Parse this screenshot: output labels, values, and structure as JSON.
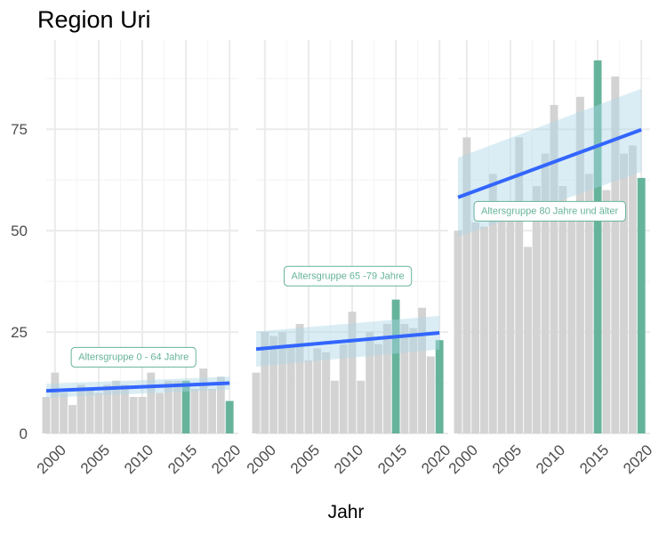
{
  "title": "Region Uri",
  "chart_data": {
    "type": "bar",
    "title": "Region Uri",
    "xlabel": "Jahr",
    "ylabel": "",
    "x_ticks": [
      2000,
      2005,
      2010,
      2015,
      2020
    ],
    "y_ticks": [
      0,
      25,
      50,
      75
    ],
    "ylim": [
      0,
      97
    ],
    "xlim": [
      1999,
      2021
    ],
    "grid": true,
    "colors": {
      "bar": "#d3d3d3",
      "highlight": "#66b39b",
      "trend": "#3366ff",
      "ribbon": "#add8e6",
      "annotation": "#66b39b"
    },
    "panels": [
      {
        "annotation": "Altersgruppe 0 - 64 Jahre",
        "annotation_pos": {
          "x": 2009,
          "y": 19
        },
        "years": [
          1999,
          2000,
          2001,
          2002,
          2003,
          2004,
          2005,
          2006,
          2007,
          2008,
          2009,
          2010,
          2011,
          2012,
          2013,
          2014,
          2015,
          2016,
          2017,
          2018,
          2019,
          2020
        ],
        "values": [
          9,
          15,
          10,
          7,
          12,
          11,
          10,
          12,
          13,
          12,
          9,
          9,
          15,
          10,
          13,
          13,
          13,
          11,
          16,
          11,
          14,
          8
        ],
        "highlight_years": [
          2015,
          2020
        ],
        "trend": {
          "x": [
            1999,
            2020
          ],
          "y": [
            10.5,
            12.4
          ],
          "lower": [
            8.8,
            10.8
          ],
          "upper": [
            12.2,
            14.0
          ]
        }
      },
      {
        "annotation": "Altersgruppe 65 -79 Jahre",
        "annotation_pos": {
          "x": 2009.5,
          "y": 39
        },
        "years": [
          1999,
          2000,
          2001,
          2002,
          2003,
          2004,
          2005,
          2006,
          2007,
          2008,
          2009,
          2010,
          2011,
          2012,
          2013,
          2014,
          2015,
          2016,
          2017,
          2018,
          2019,
          2020
        ],
        "values": [
          15,
          25,
          24,
          25,
          22,
          27,
          18,
          21,
          20,
          13,
          22,
          30,
          13,
          25,
          22,
          27,
          33,
          27,
          26,
          31,
          19,
          23
        ],
        "highlight_years": [
          2015,
          2020
        ],
        "trend": {
          "x": [
            1999,
            2020
          ],
          "y": [
            20.8,
            24.8
          ],
          "lower": [
            16.5,
            20.7
          ],
          "upper": [
            25.1,
            29.0
          ]
        }
      },
      {
        "annotation": "Altersgruppe 80 Jahre und älter",
        "annotation_pos": {
          "x": 2009.5,
          "y": 55
        },
        "years": [
          1999,
          2000,
          2001,
          2002,
          2003,
          2004,
          2005,
          2006,
          2007,
          2008,
          2009,
          2010,
          2011,
          2012,
          2013,
          2014,
          2015,
          2016,
          2017,
          2018,
          2019,
          2020
        ],
        "values": [
          50,
          73,
          52,
          51,
          64,
          55,
          56,
          73,
          46,
          61,
          69,
          81,
          61,
          54,
          83,
          64,
          92,
          60,
          88,
          69,
          71,
          63
        ],
        "highlight_years": [
          2015,
          2020
        ],
        "trend": {
          "x": [
            1999,
            2020
          ],
          "y": [
            58.2,
            74.9
          ],
          "lower": [
            48.5,
            64.5
          ],
          "upper": [
            68.0,
            85.0
          ]
        }
      }
    ]
  }
}
